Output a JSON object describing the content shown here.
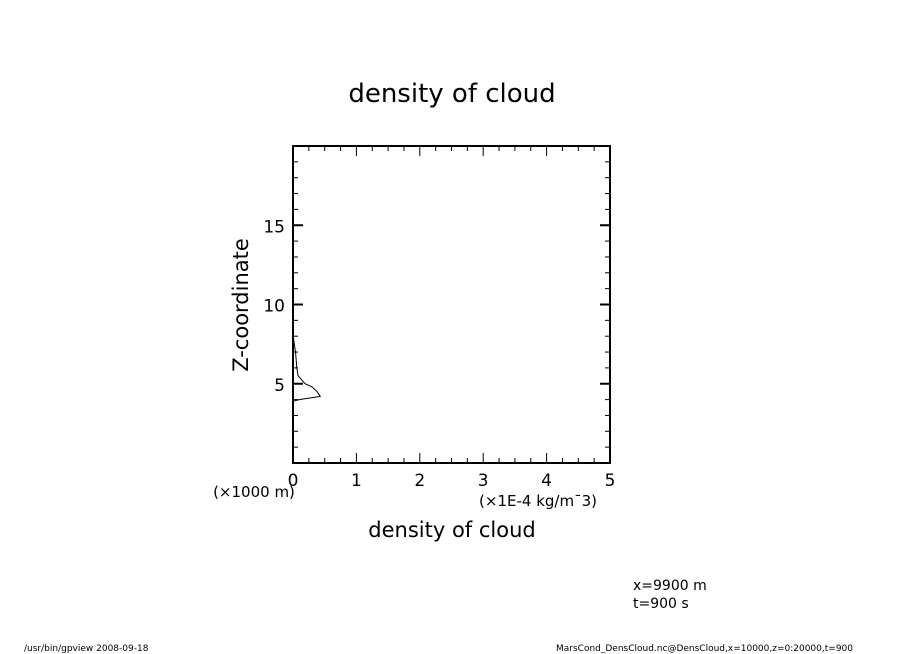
{
  "chart_data": {
    "type": "line",
    "title": "density of cloud",
    "xlabel": "density of cloud",
    "x_unit": "(×1E-4 kg/m¯3)",
    "ylabel": "Z-coordinate",
    "y_unit": "(×1000 m)",
    "xlim": [
      0,
      5
    ],
    "ylim": [
      0,
      20
    ],
    "x_ticks": [
      0,
      1,
      2,
      3,
      4,
      5
    ],
    "y_ticks": [
      5,
      10,
      15
    ],
    "x_minor_step": 0.25,
    "y_minor_step": 1,
    "grid": false,
    "series": [
      {
        "x": [
          0.0,
          0.1,
          0.43,
          0.38,
          0.3,
          0.19,
          0.08,
          0.06,
          0.05,
          0.04,
          0.02,
          0.0
        ],
        "y": [
          3.9,
          4.0,
          4.2,
          4.5,
          4.8,
          5.0,
          5.5,
          6.0,
          6.5,
          7.0,
          7.5,
          8.1
        ]
      }
    ]
  },
  "annotations": {
    "line1": "x=9900 m",
    "line2": "t=900 s"
  },
  "footer": {
    "left": "/usr/bin/gpview   2008-09-18",
    "right": "MarsCond_DensCloud.nc@DensCloud,x=10000,z=0:20000,t=900"
  }
}
